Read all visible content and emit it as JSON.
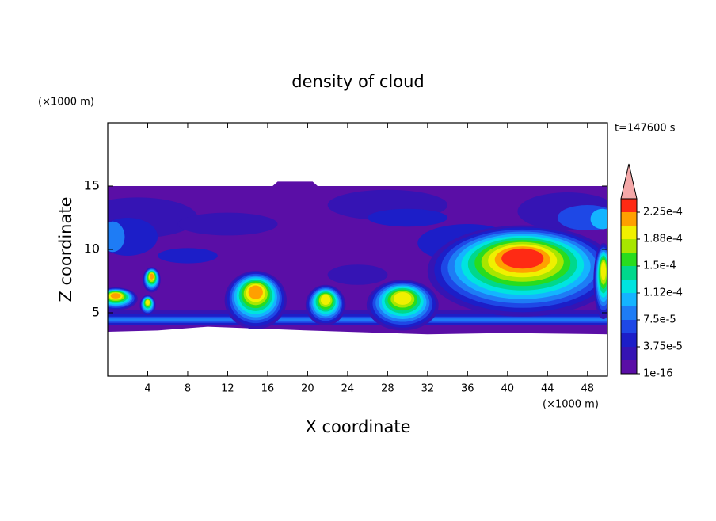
{
  "chart_data": {
    "type": "contour",
    "title": "density of cloud",
    "xlabel": "X coordinate",
    "ylabel": "Z coordinate",
    "x_unit": "(×1000 m)",
    "y_unit": "(×1000 m)",
    "annotation": "t=147600 s",
    "xlim": [
      0,
      50
    ],
    "ylim": [
      0,
      20
    ],
    "xticks": [
      4,
      8,
      12,
      16,
      20,
      24,
      28,
      32,
      36,
      40,
      44,
      48
    ],
    "yticks": [
      5,
      10,
      15
    ],
    "colorbar": {
      "ticks": [
        {
          "value": 1e-16,
          "label": "1e-16"
        },
        {
          "value": 3.75e-05,
          "label": "3.75e-5"
        },
        {
          "value": 7.5e-05,
          "label": "7.5e-5"
        },
        {
          "value": 0.000112,
          "label": "1.12e-4"
        },
        {
          "value": 0.00015,
          "label": "1.5e-4"
        },
        {
          "value": 0.000188,
          "label": "1.88e-4"
        },
        {
          "value": 0.000225,
          "label": "2.25e-4"
        }
      ],
      "colors": [
        "#5a0ea6",
        "#3514b4",
        "#1c1ec8",
        "#1e48e6",
        "#1e7cf5",
        "#14b4ff",
        "#00e4e0",
        "#00d88c",
        "#28dc1e",
        "#a8e600",
        "#f0f000",
        "#ffa000",
        "#ff2a14"
      ],
      "extend_color": "#f4a8a8"
    }
  }
}
